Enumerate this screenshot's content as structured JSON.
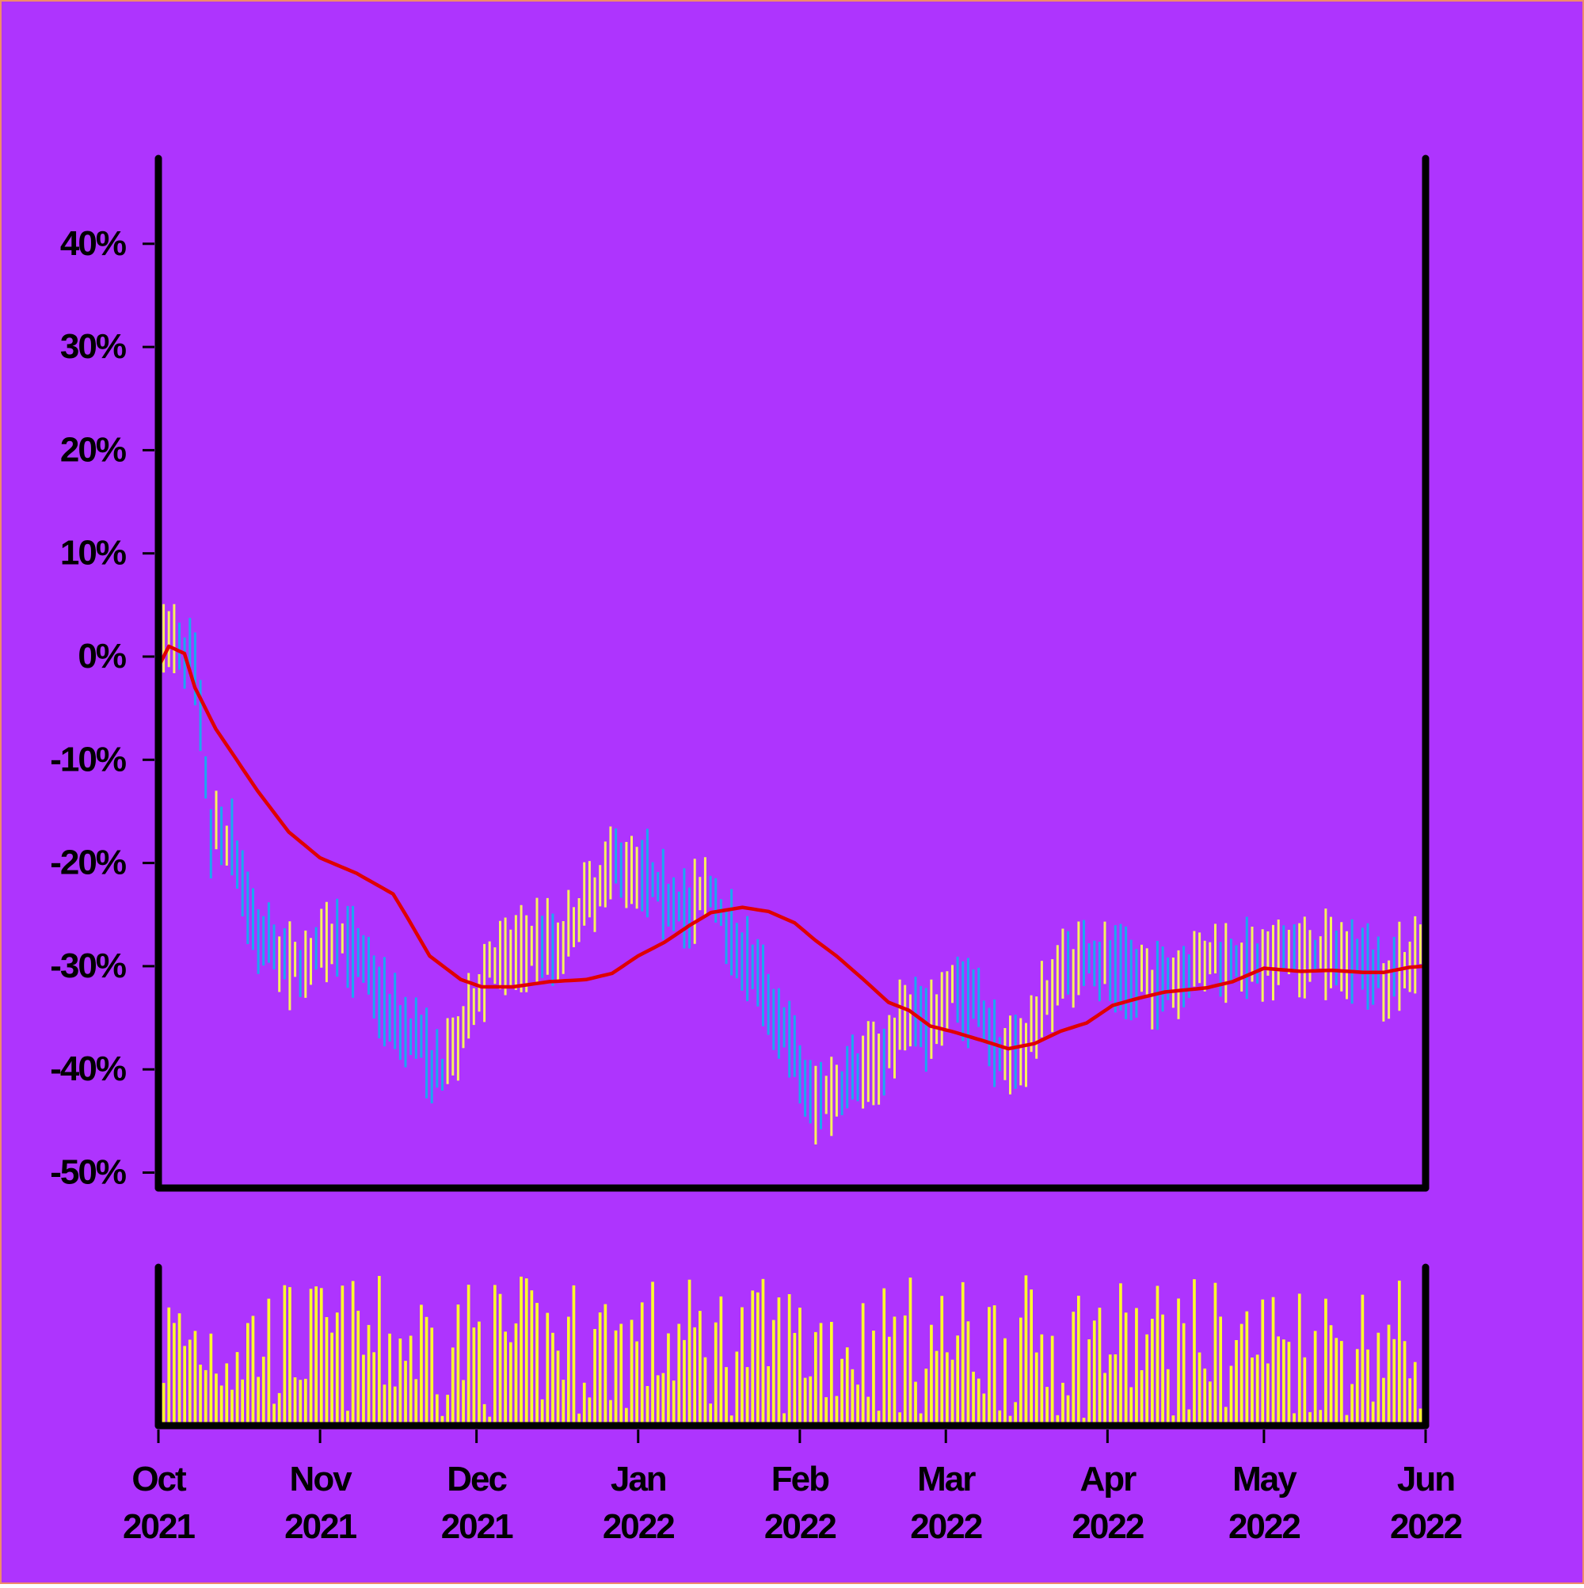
{
  "colors": {
    "background": "#ae34fe",
    "up": "#f7f25b",
    "down": "#1ba8f0",
    "sma": "#e00000",
    "volume": "#fbfb2c",
    "axis": "#000000",
    "border": "#f08a6a"
  },
  "chart_data": [
    {
      "type": "ohlc",
      "title": "",
      "xlabel": "",
      "ylabel": "",
      "y_unit": "%",
      "ylim": [
        -51,
        50
      ],
      "yticks": [
        40,
        30,
        20,
        10,
        0,
        -10,
        -20,
        -30,
        -40,
        -50
      ],
      "ytick_labels": [
        "40%",
        "30%",
        "20%",
        "10%",
        "0%",
        "-10%",
        "-20%",
        "-30%",
        "-40%",
        "-50%"
      ],
      "x_range": [
        "2021-10-01",
        "2022-06-01"
      ],
      "grid": false,
      "legend": "none",
      "series": [
        {
          "kind": "ohlc",
          "note_keyframes": "dates (YYYY-MM-DD) and approximate close values in percent",
          "keyframes": [
            [
              "2021-10-01",
              0
            ],
            [
              "2021-10-04",
              2
            ],
            [
              "2021-10-08",
              -1
            ],
            [
              "2021-10-11",
              -17
            ],
            [
              "2021-10-15",
              -18
            ],
            [
              "2021-10-20",
              -27
            ],
            [
              "2021-10-26",
              -30
            ],
            [
              "2021-11-01",
              -29
            ],
            [
              "2021-11-05",
              -27
            ],
            [
              "2021-11-10",
              -30
            ],
            [
              "2021-11-15",
              -35
            ],
            [
              "2021-11-20",
              -37
            ],
            [
              "2021-11-24",
              -41
            ],
            [
              "2021-11-29",
              -36
            ],
            [
              "2021-12-03",
              -30
            ],
            [
              "2021-12-08",
              -29
            ],
            [
              "2021-12-13",
              -27
            ],
            [
              "2021-12-17",
              -28
            ],
            [
              "2021-12-22",
              -24
            ],
            [
              "2021-12-27",
              -20
            ],
            [
              "2022-01-01",
              -20
            ],
            [
              "2022-01-06",
              -23
            ],
            [
              "2022-01-11",
              -25
            ],
            [
              "2022-01-14",
              -22
            ],
            [
              "2022-01-19",
              -27
            ],
            [
              "2022-01-24",
              -31
            ],
            [
              "2022-01-29",
              -36
            ],
            [
              "2022-02-03",
              -43
            ],
            [
              "2022-02-08",
              -42
            ],
            [
              "2022-02-13",
              -40
            ],
            [
              "2022-02-18",
              -38
            ],
            [
              "2022-02-22",
              -34
            ],
            [
              "2022-02-26",
              -36
            ],
            [
              "2022-03-02",
              -32
            ],
            [
              "2022-03-07",
              -34
            ],
            [
              "2022-03-12",
              -39
            ],
            [
              "2022-03-17",
              -37
            ],
            [
              "2022-03-22",
              -31
            ],
            [
              "2022-03-27",
              -29
            ],
            [
              "2022-04-01",
              -30
            ],
            [
              "2022-04-06",
              -31
            ],
            [
              "2022-04-12",
              -32
            ],
            [
              "2022-04-18",
              -30
            ],
            [
              "2022-04-24",
              -29
            ],
            [
              "2022-04-30",
              -30
            ],
            [
              "2022-05-06",
              -29
            ],
            [
              "2022-05-12",
              -29
            ],
            [
              "2022-05-18",
              -29
            ],
            [
              "2022-05-24",
              -31
            ],
            [
              "2022-05-28",
              -30
            ],
            [
              "2022-06-01",
              -27
            ]
          ]
        },
        {
          "kind": "sma-line",
          "keyframes": [
            [
              "2021-10-01",
              -1
            ],
            [
              "2021-10-03",
              1
            ],
            [
              "2021-10-06",
              0.3
            ],
            [
              "2021-10-08",
              -3
            ],
            [
              "2021-10-12",
              -7
            ],
            [
              "2021-10-20",
              -13
            ],
            [
              "2021-10-26",
              -17
            ],
            [
              "2021-11-01",
              -19.5
            ],
            [
              "2021-11-08",
              -21
            ],
            [
              "2021-11-15",
              -23
            ],
            [
              "2021-11-18",
              -25.5
            ],
            [
              "2021-11-22",
              -29
            ],
            [
              "2021-11-28",
              -31.3
            ],
            [
              "2021-12-02",
              -32
            ],
            [
              "2021-12-08",
              -32
            ],
            [
              "2021-12-15",
              -31.5
            ],
            [
              "2021-12-22",
              -31.3
            ],
            [
              "2021-12-27",
              -30.7
            ],
            [
              "2022-01-01",
              -29
            ],
            [
              "2022-01-06",
              -27.7
            ],
            [
              "2022-01-11",
              -26
            ],
            [
              "2022-01-15",
              -24.8
            ],
            [
              "2022-01-21",
              -24.3
            ],
            [
              "2022-01-26",
              -24.7
            ],
            [
              "2022-01-31",
              -25.8
            ],
            [
              "2022-02-04",
              -27.5
            ],
            [
              "2022-02-08",
              -29
            ],
            [
              "2022-02-13",
              -31.2
            ],
            [
              "2022-02-18",
              -33.5
            ],
            [
              "2022-02-22",
              -34.3
            ],
            [
              "2022-02-26",
              -35.8
            ],
            [
              "2022-03-02",
              -36.3
            ],
            [
              "2022-03-08",
              -37.2
            ],
            [
              "2022-03-13",
              -38
            ],
            [
              "2022-03-18",
              -37.5
            ],
            [
              "2022-03-23",
              -36.3
            ],
            [
              "2022-03-28",
              -35.5
            ],
            [
              "2022-04-02",
              -33.8
            ],
            [
              "2022-04-07",
              -33.1
            ],
            [
              "2022-04-12",
              -32.5
            ],
            [
              "2022-04-20",
              -32.1
            ],
            [
              "2022-04-25",
              -31.5
            ],
            [
              "2022-05-01",
              -30.2
            ],
            [
              "2022-05-08",
              -30.5
            ],
            [
              "2022-05-14",
              -30.4
            ],
            [
              "2022-05-20",
              -30.6
            ],
            [
              "2022-05-24",
              -30.6
            ],
            [
              "2022-05-29",
              -30.1
            ],
            [
              "2022-06-01",
              -30
            ]
          ]
        }
      ]
    },
    {
      "type": "bar",
      "title": "",
      "xlabel": "",
      "ylabel": "",
      "series_name": "",
      "note": "daily trading volume (relative, unlabeled axis)",
      "ylim": [
        0,
        1
      ]
    }
  ],
  "x_axis": {
    "ticks": [
      {
        "date": "2021-10-01",
        "month": "Oct",
        "year": "2021"
      },
      {
        "date": "2021-11-01",
        "month": "Nov",
        "year": "2021"
      },
      {
        "date": "2021-12-01",
        "month": "Dec",
        "year": "2021"
      },
      {
        "date": "2022-01-01",
        "month": "Jan",
        "year": "2022"
      },
      {
        "date": "2022-02-01",
        "month": "Feb",
        "year": "2022"
      },
      {
        "date": "2022-03-01",
        "month": "Mar",
        "year": "2022"
      },
      {
        "date": "2022-04-01",
        "month": "Apr",
        "year": "2022"
      },
      {
        "date": "2022-05-01",
        "month": "May",
        "year": "2022"
      },
      {
        "date": "2022-06-01",
        "month": "Jun",
        "year": "2022"
      }
    ]
  }
}
